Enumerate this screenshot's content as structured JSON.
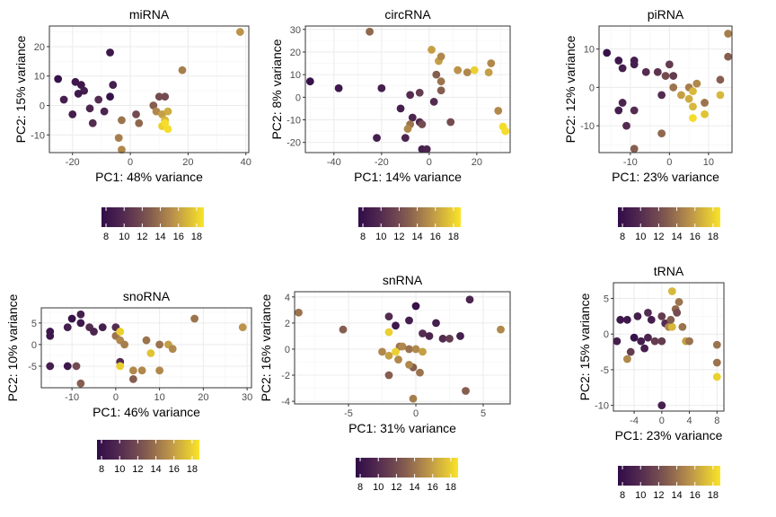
{
  "chart_data": [
    {
      "type": "scatter",
      "title": "miRNA",
      "xlabel": "PC1: 48% variance",
      "ylabel": "PC2: 15% variance",
      "xlim": [
        -28,
        41
      ],
      "ylim": [
        -16,
        27
      ],
      "xticks": [
        -20,
        0,
        20,
        40
      ],
      "yticks": [
        -10,
        0,
        10,
        20
      ],
      "color_scale": {
        "min": 7.5,
        "max": 18.8,
        "ticks": [
          8,
          10,
          12,
          14,
          16,
          18
        ]
      },
      "points": [
        {
          "x": 38,
          "y": 25,
          "c": 15.5
        },
        {
          "x": 18,
          "y": 12,
          "c": 14.5
        },
        {
          "x": -7,
          "y": 18,
          "c": 8.5
        },
        {
          "x": -25,
          "y": 9,
          "c": 8
        },
        {
          "x": -19,
          "y": 8,
          "c": 8.5
        },
        {
          "x": -17,
          "y": 7,
          "c": 8.5
        },
        {
          "x": -6,
          "y": 7,
          "c": 9
        },
        {
          "x": -16,
          "y": 5,
          "c": 9
        },
        {
          "x": -18,
          "y": 4,
          "c": 8.5
        },
        {
          "x": -20,
          "y": -3,
          "c": 9
        },
        {
          "x": -23,
          "y": 2,
          "c": 9
        },
        {
          "x": -14,
          "y": -1,
          "c": 9.5
        },
        {
          "x": -11,
          "y": 2,
          "c": 10
        },
        {
          "x": -7,
          "y": 3,
          "c": 8
        },
        {
          "x": -9,
          "y": -2,
          "c": 9.5
        },
        {
          "x": -13,
          "y": -6,
          "c": 10
        },
        {
          "x": 10,
          "y": 3,
          "c": 12
        },
        {
          "x": 12,
          "y": 3,
          "c": 12
        },
        {
          "x": 8,
          "y": 0,
          "c": 13
        },
        {
          "x": 2,
          "y": -3,
          "c": 12
        },
        {
          "x": 3,
          "y": -6,
          "c": 13.5
        },
        {
          "x": 9,
          "y": -2,
          "c": 15
        },
        {
          "x": 11,
          "y": -3,
          "c": 16
        },
        {
          "x": 12,
          "y": -5,
          "c": 17
        },
        {
          "x": 13,
          "y": -2,
          "c": 16.5
        },
        {
          "x": 11,
          "y": -7,
          "c": 18
        },
        {
          "x": 13,
          "y": -8,
          "c": 18.5
        },
        {
          "x": 12,
          "y": -6,
          "c": 18.5
        },
        {
          "x": -3,
          "y": -5,
          "c": 14
        },
        {
          "x": -4,
          "y": -11,
          "c": 14.5
        },
        {
          "x": -3,
          "y": -15,
          "c": 15
        }
      ]
    },
    {
      "type": "scatter",
      "title": "circRNA",
      "xlabel": "PC1: 14% variance",
      "ylabel": "PC2: 8% variance",
      "xlim": [
        -52,
        34
      ],
      "ylim": [
        -24.5,
        31.5
      ],
      "xticks": [
        -40,
        -20,
        0,
        20
      ],
      "yticks": [
        -20,
        -10,
        0,
        10,
        20,
        30
      ],
      "color_scale": {
        "min": 7.5,
        "max": 18.8,
        "ticks": [
          8,
          10,
          12,
          14,
          16,
          18
        ]
      },
      "points": [
        {
          "x": -25,
          "y": 29,
          "c": 13.5
        },
        {
          "x": -50,
          "y": 7,
          "c": 8
        },
        {
          "x": -38,
          "y": 4,
          "c": 8.5
        },
        {
          "x": -20,
          "y": 4,
          "c": 9
        },
        {
          "x": 1,
          "y": 21,
          "c": 16
        },
        {
          "x": 4,
          "y": 16,
          "c": 16
        },
        {
          "x": 5,
          "y": 18,
          "c": 15
        },
        {
          "x": 12,
          "y": 12,
          "c": 15.5
        },
        {
          "x": 19,
          "y": 12,
          "c": 18
        },
        {
          "x": 26,
          "y": 15,
          "c": 15
        },
        {
          "x": 25,
          "y": 11,
          "c": 16
        },
        {
          "x": 16,
          "y": 11,
          "c": 15
        },
        {
          "x": 3,
          "y": 10,
          "c": 13
        },
        {
          "x": 5,
          "y": 7,
          "c": 14
        },
        {
          "x": 5,
          "y": 3,
          "c": 13
        },
        {
          "x": -4,
          "y": 2,
          "c": 11
        },
        {
          "x": -8,
          "y": 1,
          "c": 10
        },
        {
          "x": 2,
          "y": -2,
          "c": 10
        },
        {
          "x": -12,
          "y": -5,
          "c": 9
        },
        {
          "x": -7,
          "y": -9,
          "c": 9.5
        },
        {
          "x": -4,
          "y": -11,
          "c": 10
        },
        {
          "x": -8,
          "y": -12,
          "c": 14
        },
        {
          "x": -9,
          "y": -14,
          "c": 15
        },
        {
          "x": -3,
          "y": -12,
          "c": 12
        },
        {
          "x": 9,
          "y": -11,
          "c": 12
        },
        {
          "x": -22,
          "y": -18,
          "c": 9
        },
        {
          "x": -10,
          "y": -18,
          "c": 9.5
        },
        {
          "x": -3,
          "y": -23,
          "c": 9
        },
        {
          "x": -1,
          "y": -23,
          "c": 9.5
        },
        {
          "x": 29,
          "y": -6,
          "c": 15
        },
        {
          "x": 31,
          "y": -13,
          "c": 18.5
        },
        {
          "x": 32,
          "y": -15,
          "c": 18.5
        }
      ]
    },
    {
      "type": "scatter",
      "title": "piRNA",
      "xlabel": "PC1: 23% variance",
      "ylabel": "PC2: 12% variance",
      "xlim": [
        -18,
        16
      ],
      "ylim": [
        -17,
        16
      ],
      "xticks": [
        -10,
        0,
        10
      ],
      "yticks": [
        -10,
        0,
        10
      ],
      "color_scale": {
        "min": 7.5,
        "max": 18.8,
        "ticks": [
          8,
          10,
          12,
          14,
          16,
          18
        ]
      },
      "points": [
        {
          "x": 15,
          "y": 14,
          "c": 14.5
        },
        {
          "x": 15,
          "y": 8,
          "c": 13
        },
        {
          "x": -16,
          "y": 9,
          "c": 8
        },
        {
          "x": -13,
          "y": 7,
          "c": 8.5
        },
        {
          "x": -9,
          "y": 7,
          "c": 9
        },
        {
          "x": -9,
          "y": 6,
          "c": 9
        },
        {
          "x": -12,
          "y": 5,
          "c": 9
        },
        {
          "x": -6,
          "y": 4,
          "c": 10
        },
        {
          "x": -3,
          "y": 4,
          "c": 10.5
        },
        {
          "x": 0,
          "y": 6,
          "c": 11
        },
        {
          "x": 1,
          "y": 3,
          "c": 11
        },
        {
          "x": -1,
          "y": 3,
          "c": 12
        },
        {
          "x": -2,
          "y": -2,
          "c": 10
        },
        {
          "x": -13,
          "y": -6,
          "c": 9
        },
        {
          "x": -12,
          "y": -4,
          "c": 9.5
        },
        {
          "x": -9,
          "y": -6,
          "c": 10
        },
        {
          "x": -11,
          "y": -10,
          "c": 10
        },
        {
          "x": -9,
          "y": -16,
          "c": 13
        },
        {
          "x": -2,
          "y": -12,
          "c": 13.5
        },
        {
          "x": 1,
          "y": 0,
          "c": 14
        },
        {
          "x": 3,
          "y": -2,
          "c": 16
        },
        {
          "x": 5,
          "y": -3,
          "c": 16.5
        },
        {
          "x": 5,
          "y": 0,
          "c": 14.5
        },
        {
          "x": 6,
          "y": -1,
          "c": 17
        },
        {
          "x": 7,
          "y": 1,
          "c": 15
        },
        {
          "x": 6,
          "y": -5,
          "c": 17
        },
        {
          "x": 6,
          "y": -8,
          "c": 18.5
        },
        {
          "x": 9,
          "y": -7,
          "c": 17.5
        },
        {
          "x": 9,
          "y": -4,
          "c": 14
        },
        {
          "x": 13,
          "y": -2,
          "c": 17
        },
        {
          "x": 13,
          "y": 2,
          "c": 13
        }
      ]
    },
    {
      "type": "scatter",
      "title": "snoRNA",
      "xlabel": "PC1: 46% variance",
      "ylabel": "PC2: 10% variance",
      "xlim": [
        -17,
        31
      ],
      "ylim": [
        -10,
        8.5
      ],
      "xticks": [
        -10,
        0,
        10,
        20,
        30
      ],
      "yticks": [
        -5,
        0,
        5
      ],
      "color_scale": {
        "min": 7.5,
        "max": 18.8,
        "ticks": [
          8,
          10,
          12,
          14,
          16,
          18
        ]
      },
      "points": [
        {
          "x": -15,
          "y": 3,
          "c": 8.5
        },
        {
          "x": -15,
          "y": 2,
          "c": 8.5
        },
        {
          "x": -11,
          "y": 4,
          "c": 9
        },
        {
          "x": -10,
          "y": 6,
          "c": 8
        },
        {
          "x": -8,
          "y": 7,
          "c": 9
        },
        {
          "x": -8,
          "y": 5,
          "c": 8.5
        },
        {
          "x": -6,
          "y": 4,
          "c": 10
        },
        {
          "x": -5,
          "y": 3,
          "c": 9.5
        },
        {
          "x": -3,
          "y": 4,
          "c": 9
        },
        {
          "x": 0,
          "y": 4,
          "c": 10
        },
        {
          "x": 0,
          "y": 2,
          "c": 14
        },
        {
          "x": 1,
          "y": 1,
          "c": 15
        },
        {
          "x": 1,
          "y": 3,
          "c": 18
        },
        {
          "x": 2,
          "y": 0,
          "c": 14.5
        },
        {
          "x": 7,
          "y": 1,
          "c": 14
        },
        {
          "x": 8,
          "y": -2,
          "c": 17.5
        },
        {
          "x": 10,
          "y": 0,
          "c": 14
        },
        {
          "x": 12,
          "y": 0,
          "c": 16
        },
        {
          "x": 13,
          "y": -1,
          "c": 15
        },
        {
          "x": 18,
          "y": 6,
          "c": 14
        },
        {
          "x": 29,
          "y": 4,
          "c": 15.5
        },
        {
          "x": -15,
          "y": -5,
          "c": 9
        },
        {
          "x": -11,
          "y": -5,
          "c": 8.5
        },
        {
          "x": -9,
          "y": -5,
          "c": 12
        },
        {
          "x": -8,
          "y": -9,
          "c": 13
        },
        {
          "x": 1,
          "y": -4,
          "c": 10
        },
        {
          "x": 1,
          "y": -5,
          "c": 18
        },
        {
          "x": 4,
          "y": -6,
          "c": 15
        },
        {
          "x": 6,
          "y": -6,
          "c": 15
        },
        {
          "x": 10,
          "y": -6,
          "c": 15
        },
        {
          "x": 4,
          "y": -8,
          "c": 13
        }
      ]
    },
    {
      "type": "scatter",
      "title": "snRNA",
      "xlabel": "PC1: 31% variance",
      "ylabel": "PC2: 16% variance",
      "xlim": [
        -9,
        7
      ],
      "ylim": [
        -4.2,
        4.4
      ],
      "xticks": [
        -5,
        0,
        5
      ],
      "yticks": [
        -4,
        -2,
        0,
        2,
        4
      ],
      "color_scale": {
        "min": 7.5,
        "max": 18.8,
        "ticks": [
          8,
          10,
          12,
          14,
          16,
          18
        ]
      },
      "points": [
        {
          "x": -8.7,
          "y": 2.8,
          "c": 14
        },
        {
          "x": -5.4,
          "y": 1.5,
          "c": 13
        },
        {
          "x": -2,
          "y": 2.5,
          "c": 10
        },
        {
          "x": -1.5,
          "y": 1.8,
          "c": 8.5
        },
        {
          "x": -0.5,
          "y": 2.2,
          "c": 9
        },
        {
          "x": 0,
          "y": 3.3,
          "c": 8
        },
        {
          "x": 0.5,
          "y": 1.2,
          "c": 10
        },
        {
          "x": 1,
          "y": 1,
          "c": 9.5
        },
        {
          "x": 1.5,
          "y": 2,
          "c": 9
        },
        {
          "x": 2,
          "y": 0.8,
          "c": 10
        },
        {
          "x": 2.5,
          "y": 0.8,
          "c": 11
        },
        {
          "x": 3.3,
          "y": 1,
          "c": 9
        },
        {
          "x": 4,
          "y": 3.8,
          "c": 9.5
        },
        {
          "x": 6.3,
          "y": 1.5,
          "c": 15
        },
        {
          "x": -2,
          "y": 1.3,
          "c": 18
        },
        {
          "x": -1.2,
          "y": 0.2,
          "c": 14
        },
        {
          "x": -2.5,
          "y": -0.2,
          "c": 15
        },
        {
          "x": -2,
          "y": -0.5,
          "c": 16
        },
        {
          "x": -1.5,
          "y": -0.2,
          "c": 18
        },
        {
          "x": -1,
          "y": 0.2,
          "c": 15
        },
        {
          "x": -0.5,
          "y": 0,
          "c": 14
        },
        {
          "x": 0,
          "y": 0,
          "c": 15
        },
        {
          "x": 0.5,
          "y": -0.2,
          "c": 16
        },
        {
          "x": -1.3,
          "y": -0.8,
          "c": 15
        },
        {
          "x": -0.2,
          "y": -1.4,
          "c": 13
        },
        {
          "x": -0.5,
          "y": -1.2,
          "c": 15
        },
        {
          "x": 0.3,
          "y": -1.8,
          "c": 14
        },
        {
          "x": -2,
          "y": -2,
          "c": 13
        },
        {
          "x": 3.7,
          "y": -3.2,
          "c": 13
        },
        {
          "x": -0.2,
          "y": -3.8,
          "c": 14.5
        }
      ]
    },
    {
      "type": "scatter",
      "title": "tRNA",
      "xlabel": "PC1: 23% variance",
      "ylabel": "PC2: 15% variance",
      "xlim": [
        -7,
        9
      ],
      "ylim": [
        -10.8,
        7.2
      ],
      "xticks": [
        -4,
        0,
        4,
        8
      ],
      "yticks": [
        -10,
        -5,
        0,
        5
      ],
      "color_scale": {
        "min": 7.5,
        "max": 18.8,
        "ticks": [
          8,
          10,
          12,
          14,
          16,
          18
        ]
      },
      "points": [
        {
          "x": 1.5,
          "y": 6,
          "c": 17
        },
        {
          "x": 2.5,
          "y": 4.5,
          "c": 14
        },
        {
          "x": 2,
          "y": 3.5,
          "c": 13.5
        },
        {
          "x": 2.2,
          "y": 3,
          "c": 12
        },
        {
          "x": -6,
          "y": 2,
          "c": 8.5
        },
        {
          "x": -5,
          "y": 2,
          "c": 8.5
        },
        {
          "x": -3.5,
          "y": 2.5,
          "c": 9
        },
        {
          "x": -2,
          "y": 3,
          "c": 10
        },
        {
          "x": -1.5,
          "y": 2,
          "c": 9
        },
        {
          "x": 0,
          "y": 2.5,
          "c": 11
        },
        {
          "x": 0.5,
          "y": 1.5,
          "c": 10
        },
        {
          "x": 1,
          "y": 1,
          "c": 15
        },
        {
          "x": 1.5,
          "y": 1,
          "c": 17
        },
        {
          "x": 1.3,
          "y": 2,
          "c": 13
        },
        {
          "x": 3,
          "y": 1,
          "c": 14
        },
        {
          "x": 3.5,
          "y": -1,
          "c": 16
        },
        {
          "x": 4,
          "y": -1,
          "c": 14
        },
        {
          "x": -6.5,
          "y": -1,
          "c": 9
        },
        {
          "x": -4,
          "y": -0.5,
          "c": 8
        },
        {
          "x": -3,
          "y": -1,
          "c": 9
        },
        {
          "x": -2,
          "y": -0.5,
          "c": 9.5
        },
        {
          "x": -1,
          "y": -1,
          "c": 11
        },
        {
          "x": 0,
          "y": -1,
          "c": 11
        },
        {
          "x": -4.5,
          "y": -2.5,
          "c": 11
        },
        {
          "x": -2.5,
          "y": -2,
          "c": 9
        },
        {
          "x": -5,
          "y": -3.5,
          "c": 15
        },
        {
          "x": 8,
          "y": -1.5,
          "c": 14
        },
        {
          "x": 8,
          "y": -4,
          "c": 14
        },
        {
          "x": 8,
          "y": -6,
          "c": 18
        },
        {
          "x": 0,
          "y": -10,
          "c": 9
        }
      ]
    }
  ]
}
